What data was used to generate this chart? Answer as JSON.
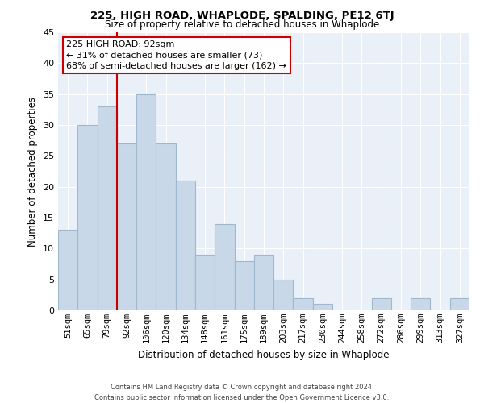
{
  "title": "225, HIGH ROAD, WHAPLODE, SPALDING, PE12 6TJ",
  "subtitle": "Size of property relative to detached houses in Whaplode",
  "xlabel": "Distribution of detached houses by size in Whaplode",
  "ylabel": "Number of detached properties",
  "bin_labels": [
    "51sqm",
    "65sqm",
    "79sqm",
    "92sqm",
    "106sqm",
    "120sqm",
    "134sqm",
    "148sqm",
    "161sqm",
    "175sqm",
    "189sqm",
    "203sqm",
    "217sqm",
    "230sqm",
    "244sqm",
    "258sqm",
    "272sqm",
    "286sqm",
    "299sqm",
    "313sqm",
    "327sqm"
  ],
  "bar_values": [
    13,
    30,
    33,
    27,
    35,
    27,
    21,
    9,
    14,
    8,
    9,
    5,
    2,
    1,
    0,
    0,
    2,
    0,
    2,
    0,
    2
  ],
  "bar_color": "#c8d8e8",
  "bar_edge_color": "#a0b8cc",
  "highlight_line_index": 3,
  "highlight_line_color": "#cc0000",
  "annotation_line1": "225 HIGH ROAD: 92sqm",
  "annotation_line2": "← 31% of detached houses are smaller (73)",
  "annotation_line3": "68% of semi-detached houses are larger (162) →",
  "annotation_box_color": "#ffffff",
  "annotation_box_edge": "#cc0000",
  "ylim": [
    0,
    45
  ],
  "yticks": [
    0,
    5,
    10,
    15,
    20,
    25,
    30,
    35,
    40,
    45
  ],
  "footer_line1": "Contains HM Land Registry data © Crown copyright and database right 2024.",
  "footer_line2": "Contains public sector information licensed under the Open Government Licence v3.0.",
  "background_color": "#ffffff",
  "plot_bg_color": "#eaf0f8",
  "grid_color": "#ffffff"
}
